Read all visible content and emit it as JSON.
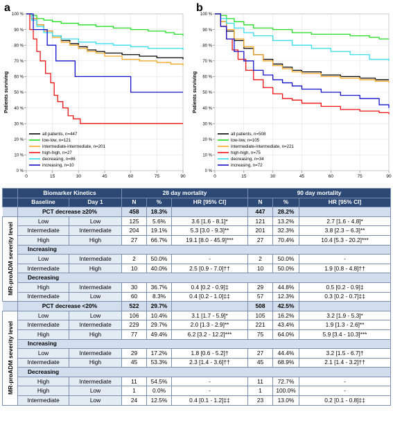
{
  "chart_data": [
    {
      "type": "line",
      "panel": "a",
      "xlabel": "Days",
      "ylabel": "Patients surviving",
      "xlim": [
        0,
        90
      ],
      "ylim": [
        0,
        100
      ],
      "xticks": [
        0,
        15,
        30,
        45,
        60,
        75,
        90
      ],
      "yticks": [
        0,
        10,
        20,
        30,
        40,
        50,
        60,
        70,
        80,
        90,
        100
      ],
      "ytick_labels": [
        "0 %",
        "10 %",
        "20 %",
        "30 %",
        "40 %",
        "50 %",
        "60 %",
        "70 %",
        "80 %",
        "90 %",
        "100 %"
      ],
      "legend_position": "bottom-left",
      "series": [
        {
          "name": "all patients, n=447",
          "color": "#000000",
          "x": [
            0,
            3,
            6,
            10,
            15,
            20,
            25,
            30,
            35,
            40,
            45,
            55,
            65,
            75,
            83,
            90
          ],
          "y": [
            100,
            97,
            93,
            89,
            86,
            83,
            81,
            79,
            77,
            76,
            75,
            74,
            73,
            72,
            72,
            71
          ]
        },
        {
          "name": "low-low, n=121",
          "color": "#22dd22",
          "x": [
            0,
            3,
            6,
            10,
            15,
            20,
            30,
            40,
            50,
            60,
            70,
            80,
            85,
            90
          ],
          "y": [
            100,
            99,
            97,
            96,
            95,
            94,
            93,
            92,
            91,
            90,
            89,
            88,
            87,
            86
          ]
        },
        {
          "name": "intermediate-intermediate, n=201",
          "color": "#f5a623",
          "x": [
            0,
            3,
            6,
            10,
            15,
            20,
            25,
            30,
            35,
            40,
            45,
            55,
            65,
            75,
            83,
            90
          ],
          "y": [
            100,
            97,
            93,
            89,
            85,
            82,
            80,
            78,
            76,
            75,
            73,
            71,
            70,
            69,
            68,
            67
          ]
        },
        {
          "name": "high-high, n=27",
          "color": "#ee1111",
          "x": [
            0,
            2,
            4,
            6,
            8,
            11,
            14,
            16,
            18,
            21,
            24,
            27,
            31,
            90
          ],
          "y": [
            100,
            90,
            84,
            76,
            70,
            62,
            56,
            48,
            44,
            40,
            35,
            33,
            30,
            30
          ]
        },
        {
          "name": "decreasing, n=86",
          "color": "#33ddee",
          "x": [
            0,
            3,
            6,
            10,
            15,
            20,
            30,
            40,
            50,
            60,
            70,
            80,
            90
          ],
          "y": [
            100,
            96,
            92,
            88,
            86,
            84,
            82,
            81,
            80,
            79,
            78,
            78,
            77
          ]
        },
        {
          "name": "increasing, n=10",
          "color": "#1111cc",
          "x": [
            0,
            4,
            8,
            12,
            17,
            22,
            28,
            35,
            50,
            60,
            70,
            90
          ],
          "y": [
            100,
            90,
            90,
            80,
            70,
            70,
            60,
            60,
            60,
            50,
            50,
            50
          ]
        }
      ]
    },
    {
      "type": "line",
      "panel": "b",
      "xlabel": "Days",
      "ylabel": "Patients surviving",
      "xlim": [
        0,
        90
      ],
      "ylim": [
        0,
        100
      ],
      "xticks": [
        0,
        15,
        30,
        45,
        60,
        75,
        90
      ],
      "yticks": [
        0,
        10,
        20,
        30,
        40,
        50,
        60,
        70,
        80,
        90,
        100
      ],
      "ytick_labels": [
        "0 %",
        "10 %",
        "20 %",
        "30 %",
        "40 %",
        "50 %",
        "60 %",
        "70 %",
        "80 %",
        "90 %",
        "100 %"
      ],
      "legend_position": "bottom-left",
      "series": [
        {
          "name": "all patients, n=508",
          "color": "#000000",
          "x": [
            0,
            3,
            6,
            10,
            15,
            20,
            25,
            30,
            35,
            40,
            45,
            55,
            65,
            75,
            83,
            90
          ],
          "y": [
            100,
            95,
            89,
            83,
            78,
            74,
            71,
            68,
            66,
            64,
            63,
            61,
            60,
            59,
            58,
            58
          ]
        },
        {
          "name": "low-low, n=105",
          "color": "#22dd22",
          "x": [
            0,
            3,
            6,
            10,
            15,
            20,
            30,
            40,
            50,
            60,
            70,
            80,
            85,
            90
          ],
          "y": [
            100,
            99,
            97,
            95,
            93,
            91,
            90,
            88,
            87,
            87,
            86,
            85,
            84,
            84
          ]
        },
        {
          "name": "intermediate-intermediate, n=221",
          "color": "#f5a623",
          "x": [
            0,
            3,
            6,
            10,
            15,
            20,
            25,
            30,
            35,
            40,
            45,
            55,
            65,
            75,
            83,
            90
          ],
          "y": [
            100,
            95,
            90,
            84,
            79,
            74,
            70,
            67,
            65,
            63,
            62,
            60,
            59,
            58,
            57,
            56
          ]
        },
        {
          "name": "high-high, n=75",
          "color": "#ee1111",
          "x": [
            0,
            3,
            6,
            9,
            12,
            16,
            20,
            25,
            30,
            35,
            40,
            45,
            55,
            65,
            75,
            85,
            90
          ],
          "y": [
            100,
            92,
            84,
            77,
            71,
            64,
            58,
            53,
            49,
            46,
            45,
            43,
            41,
            39,
            38,
            37,
            36
          ]
        },
        {
          "name": "decreasing, n=34",
          "color": "#33ddee",
          "x": [
            0,
            3,
            6,
            10,
            15,
            20,
            30,
            40,
            50,
            60,
            70,
            80,
            90
          ],
          "y": [
            100,
            97,
            94,
            91,
            88,
            86,
            83,
            80,
            78,
            76,
            74,
            71,
            70
          ]
        },
        {
          "name": "increasing, n=72",
          "color": "#1111cc",
          "x": [
            0,
            3,
            6,
            10,
            15,
            20,
            25,
            30,
            35,
            40,
            45,
            55,
            65,
            75,
            85,
            90
          ],
          "y": [
            100,
            92,
            84,
            76,
            70,
            64,
            61,
            58,
            56,
            54,
            52,
            50,
            48,
            46,
            42,
            40
          ]
        }
      ]
    },
    {
      "type": "table",
      "header_top": {
        "kinetics": "Biomarker Kinetics",
        "m28": "28 day mortality",
        "m90": "90 day mortality"
      },
      "header_sub": {
        "baseline": "Baseline",
        "day1": "Day 1",
        "n": "N",
        "pct": "%",
        "hr": "HR [95% CI]"
      },
      "sections": [
        {
          "heading": "PCT decrease ≥20%",
          "n28": "458",
          "pct28": "18.3%",
          "n90": "447",
          "pct90": "28.2%",
          "side_label": "MR-proADM severity level",
          "blocks": [
            {
              "subheading": "",
              "rows": [
                [
                  "Low",
                  "Low",
                  "125",
                  "5.6%",
                  "3.6 [1.6 - 8.1]*",
                  "121",
                  "13.2%",
                  "2.7 [1.6 - 4.8]*"
                ],
                [
                  "Intermediate",
                  "Intermediate",
                  "204",
                  "19.1%",
                  "5.3 [3.0 - 9.3]**",
                  "201",
                  "32.3%",
                  "3.8 [2.3 – 6.3]**"
                ],
                [
                  "High",
                  "High",
                  "27",
                  "66.7%",
                  "19.1 [8.0 - 45.9]***",
                  "27",
                  "70.4%",
                  "10.4 [5.3 - 20.2]***"
                ]
              ]
            },
            {
              "subheading": "Increasing",
              "rows": [
                [
                  "Low",
                  "Intermediate",
                  "2",
                  "50.0%",
                  "-",
                  "2",
                  "50.0%",
                  "-"
                ],
                [
                  "Intermediate",
                  "High",
                  "10",
                  "40.0%",
                  "2.5 [0.9 - 7.0]††",
                  "10",
                  "50.0%",
                  "1.9 [0.8 - 4.8]††"
                ]
              ]
            },
            {
              "subheading": "Decreasing",
              "rows": [
                [
                  "High",
                  "Intermediate",
                  "30",
                  "36.7%",
                  "0.4 [0.2 - 0.9]‡",
                  "29",
                  "44.8%",
                  "0.5 [0.2 - 0.9]‡"
                ],
                [
                  "Intermediate",
                  "Low",
                  "60",
                  "8.3%",
                  "0.4 [0.2 - 1.0]‡‡",
                  "57",
                  "12.3%",
                  "0.3 [0.2 - 0.7]‡‡"
                ]
              ]
            }
          ]
        },
        {
          "heading": "PCT decrease <20%",
          "n28": "522",
          "pct28": "29.7%",
          "n90": "508",
          "pct90": "42.5%",
          "side_label": "MR-proADM severity level",
          "blocks": [
            {
              "subheading": "",
              "rows": [
                [
                  "Low",
                  "Low",
                  "106",
                  "10.4%",
                  "3.1 [1.7 - 5.9]*",
                  "105",
                  "16.2%",
                  "3.2 [1.9 - 5.3]*"
                ],
                [
                  "Intermediate",
                  "Intermediate",
                  "229",
                  "29.7%",
                  "2.0 [1.3 - 2.9]**",
                  "221",
                  "43.4%",
                  "1.9 [1.3 - 2.6]**"
                ],
                [
                  "High",
                  "High",
                  "77",
                  "49.4%",
                  "6.2 [3.2 - 12.2]***",
                  "75",
                  "64.0%",
                  "5.9 [3.4 - 10.3]***"
                ]
              ]
            },
            {
              "subheading": "Increasing",
              "rows": [
                [
                  "Low",
                  "Intermediate",
                  "29",
                  "17.2%",
                  "1.8 [0.6 - 5.2]†",
                  "27",
                  "44.4%",
                  "3.2 [1.5 - 6.7]†"
                ],
                [
                  "Intermediate",
                  "High",
                  "45",
                  "53.3%",
                  "2.3 [1.4 - 3.6]††",
                  "45",
                  "68.9%",
                  "2.1 [1.4 - 3.2]††"
                ]
              ]
            },
            {
              "subheading": "Decreasing",
              "rows": [
                [
                  "High",
                  "Intermediate",
                  "11",
                  "54.5%",
                  "-",
                  "11",
                  "72.7%",
                  "-"
                ],
                [
                  "High",
                  "Low",
                  "1",
                  "0.0%",
                  "-",
                  "1",
                  "100.0%",
                  "-"
                ],
                [
                  "Intermediate",
                  "Low",
                  "24",
                  "12.5%",
                  "0.4 [0.1 - 1.2]‡‡",
                  "23",
                  "13.0%",
                  "0.2 [0.1 - 0.8]‡‡"
                ]
              ]
            }
          ]
        }
      ]
    }
  ]
}
